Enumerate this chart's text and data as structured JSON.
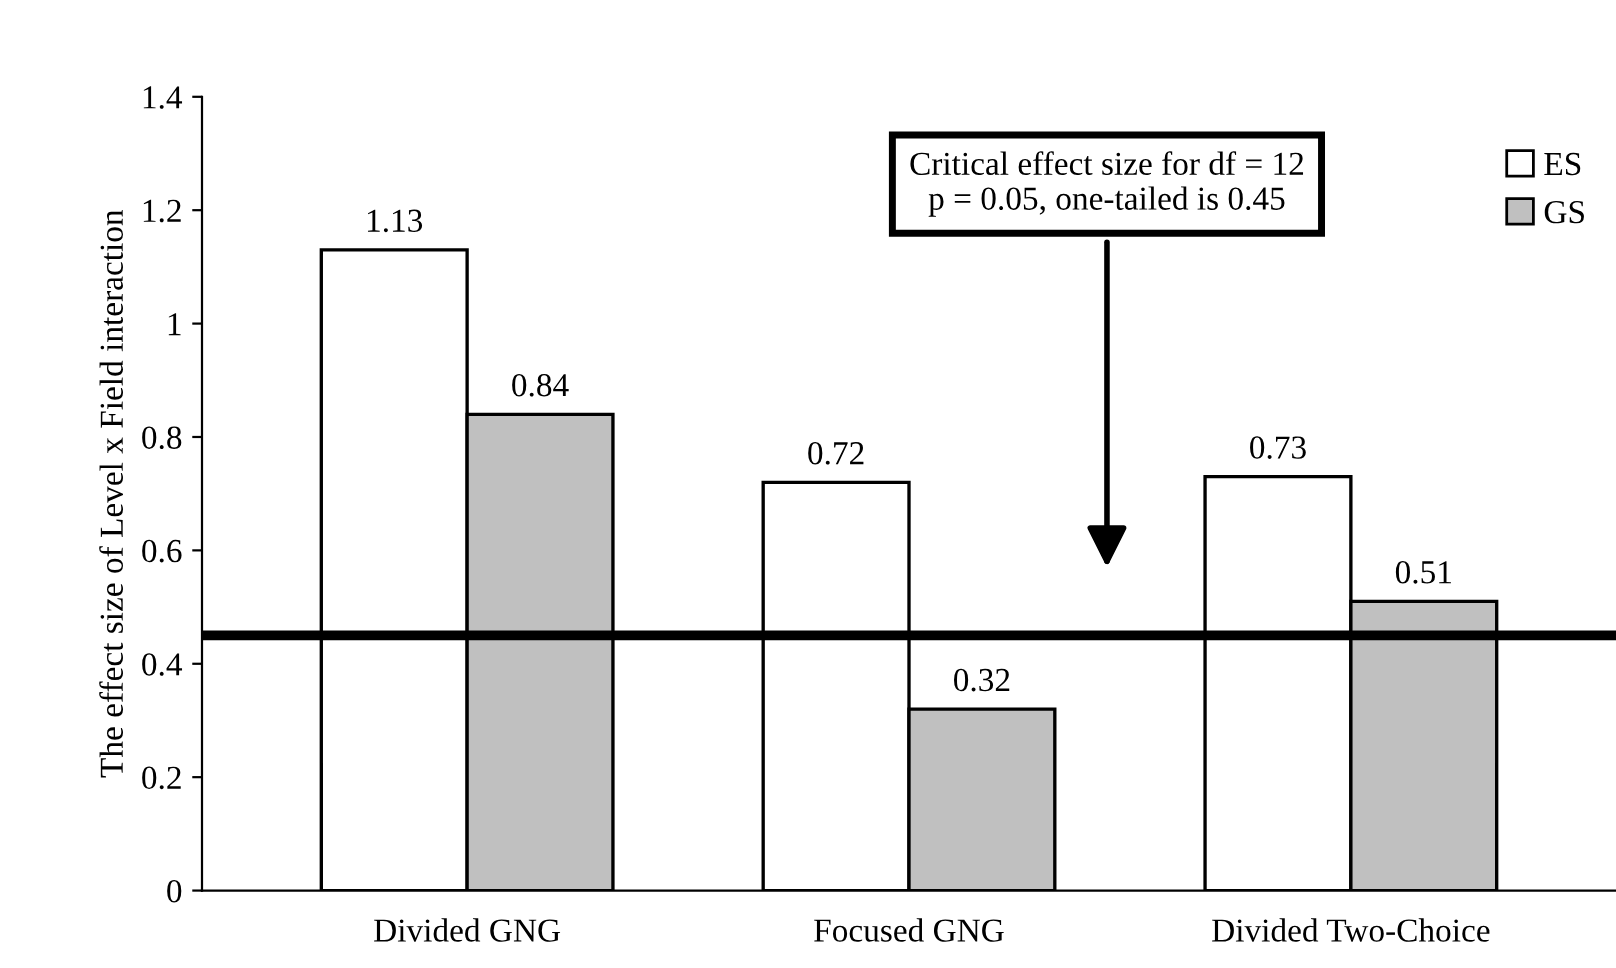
{
  "chart_data": {
    "type": "bar",
    "ylabel": "The effect size of Level x Field interaction",
    "categories": [
      "Divided GNG",
      "Focused GNG",
      "Divided Two-Choice"
    ],
    "series": [
      {
        "name": "ES",
        "color": "#ffffff",
        "values": [
          1.13,
          0.72,
          0.73
        ]
      },
      {
        "name": "GS",
        "color": "#c0c0c0",
        "values": [
          0.84,
          0.32,
          0.51
        ]
      }
    ],
    "ylim": [
      0,
      1.4
    ],
    "yticks": [
      0,
      0.2,
      0.4,
      0.6,
      0.8,
      1,
      1.2,
      1.4
    ],
    "data_labels": true,
    "legend": "top right",
    "grid": false,
    "ref_lines": [
      {
        "axis": "y",
        "value": 0.45,
        "color": "#000000"
      }
    ],
    "annotations": [
      "Critical effect size for df = 12\np = 0.05, one-tailed is 0.45"
    ]
  }
}
